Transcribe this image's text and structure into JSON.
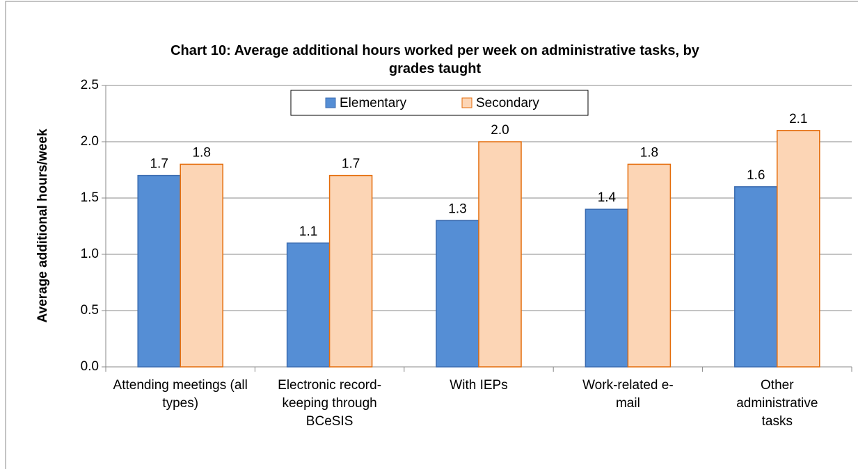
{
  "chart_data": {
    "type": "bar",
    "title": "Chart 10: Average additional hours worked per week on administrative tasks, by grades taught",
    "y_label": "Average additional hours/week",
    "categories": [
      "Attending meetings (all types)",
      "Electronic record-keeping through BCeSIS",
      "With IEPs",
      "Work-related e-mail",
      "Other administrative tasks"
    ],
    "series": [
      {
        "name": "Elementary",
        "color": "#558ed5",
        "values": [
          1.7,
          1.1,
          1.3,
          1.4,
          1.6
        ],
        "value_labels": [
          "1.7",
          "1.1",
          "1.3",
          "1.4",
          "1.6"
        ]
      },
      {
        "name": "Secondary",
        "color": "#fcd5b5",
        "values": [
          1.8,
          1.7,
          2.0,
          1.8,
          2.1
        ],
        "value_labels": [
          "1.8",
          "1.7",
          "2.0",
          "1.8",
          "2.1"
        ]
      }
    ],
    "ylim": [
      0,
      2.5
    ],
    "yticks": [
      {
        "value": 0,
        "label": "0.0"
      },
      0.5,
      {
        "value": 1,
        "label": "1.0"
      },
      1.5,
      {
        "value": 2,
        "label": "2.0"
      },
      2.5
    ],
    "grid": true,
    "legend": "top"
  }
}
